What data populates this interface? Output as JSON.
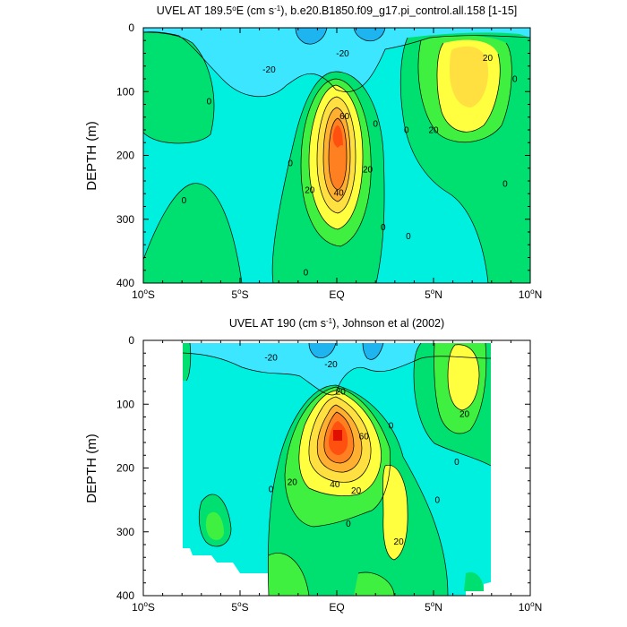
{
  "chart_data": [
    {
      "type": "heatmap",
      "title": "UVEL AT 189.5°E (cm s-1), b.e20.B1850.f09_g17.pi_control.all.158 [1-15]",
      "title_parts": [
        "UVEL AT 189.5",
        "o",
        "E (cm s",
        "-1",
        "), b.e20.B1850.f09_g17.pi_control.all.158 [1-15]"
      ],
      "ylabel": "DEPTH (m)",
      "xlabel": "",
      "x_ticks": [
        "10°S",
        "5°S",
        "EQ",
        "5°N",
        "10°N"
      ],
      "x_tick_values": [
        -10,
        -5,
        0,
        5,
        10
      ],
      "y_ticks": [
        "0",
        "100",
        "200",
        "300",
        "400"
      ],
      "y_tick_values": [
        0,
        100,
        200,
        300,
        400
      ],
      "xlim": [
        -10,
        10
      ],
      "ylim": [
        0,
        400
      ],
      "y_reversed": true,
      "contour_labels": [
        {
          "text": "-20",
          "lat": -3.5,
          "depth": 65
        },
        {
          "text": "-20",
          "lat": 0.3,
          "depth": 40
        },
        {
          "text": "0",
          "lat": -6.6,
          "depth": 115
        },
        {
          "text": "0",
          "lat": -2.4,
          "depth": 212
        },
        {
          "text": "0",
          "lat": 2.0,
          "depth": 150
        },
        {
          "text": "0",
          "lat": 3.6,
          "depth": 160
        },
        {
          "text": "0",
          "lat": -1.6,
          "depth": 383
        },
        {
          "text": "0",
          "lat": 2.4,
          "depth": 312
        },
        {
          "text": "0",
          "lat": 3.7,
          "depth": 326
        },
        {
          "text": "0",
          "lat": -7.9,
          "depth": 270
        },
        {
          "text": "0",
          "lat": 8.7,
          "depth": 244
        },
        {
          "text": "0",
          "lat": 9.2,
          "depth": 80
        },
        {
          "text": "20",
          "lat": 7.8,
          "depth": 47
        },
        {
          "text": "20",
          "lat": 5.0,
          "depth": 160
        },
        {
          "text": "20",
          "lat": 1.6,
          "depth": 222
        },
        {
          "text": "20",
          "lat": -1.4,
          "depth": 254
        },
        {
          "text": "40",
          "lat": 0.1,
          "depth": 258
        },
        {
          "text": "60",
          "lat": 0.4,
          "depth": 138
        }
      ]
    },
    {
      "type": "heatmap",
      "title": "UVEL AT 190 (cm s-1), Johnson et al (2002)",
      "title_parts": [
        "UVEL AT 190 (cm s",
        "-1",
        "), Johnson et al (2002)"
      ],
      "ylabel": "DEPTH (m)",
      "xlabel": "",
      "x_ticks": [
        "10°S",
        "5°S",
        "EQ",
        "5°N",
        "10°N"
      ],
      "x_tick_values": [
        -10,
        -5,
        0,
        5,
        10
      ],
      "y_ticks": [
        "0",
        "100",
        "200",
        "300",
        "400"
      ],
      "y_tick_values": [
        0,
        100,
        200,
        300,
        400
      ],
      "xlim": [
        -10,
        10
      ],
      "ylim": [
        0,
        400
      ],
      "y_reversed": true,
      "contour_labels": [
        {
          "text": "-20",
          "lat": -3.4,
          "depth": 27
        },
        {
          "text": "-20",
          "lat": -0.3,
          "depth": 37
        },
        {
          "text": "20",
          "lat": 0.2,
          "depth": 80
        },
        {
          "text": "20",
          "lat": 6.6,
          "depth": 115
        },
        {
          "text": "60",
          "lat": 1.4,
          "depth": 150
        },
        {
          "text": "0",
          "lat": 2.8,
          "depth": 133
        },
        {
          "text": "0",
          "lat": 6.2,
          "depth": 190
        },
        {
          "text": "20",
          "lat": -2.3,
          "depth": 222
        },
        {
          "text": "40",
          "lat": -0.1,
          "depth": 225
        },
        {
          "text": "20",
          "lat": 1.0,
          "depth": 235
        },
        {
          "text": "0",
          "lat": -3.4,
          "depth": 233
        },
        {
          "text": "0",
          "lat": 5.2,
          "depth": 250
        },
        {
          "text": "0",
          "lat": 0.6,
          "depth": 287
        },
        {
          "text": "20",
          "lat": 3.2,
          "depth": 315
        }
      ]
    }
  ],
  "colors": {
    "neg40": "#1eb4f0",
    "neg20": "#3ce6ff",
    "neg0": "#00f0e0",
    "pos0": "#00e070",
    "pos20": "#40f040",
    "pos40": "#ffff40",
    "pos60": "#ffe040",
    "pos80": "#ffb030",
    "pos100": "#ff8020",
    "pos120": "#ff5010",
    "pos140": "#e01000",
    "contour_line": "#000000",
    "missing": "#ffffff"
  }
}
